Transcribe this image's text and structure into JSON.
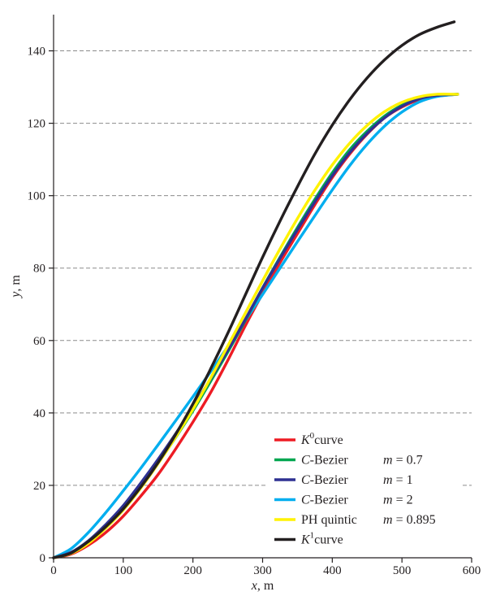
{
  "chart_data": {
    "type": "line",
    "xlabel": {
      "var": "x",
      "unit": ", m"
    },
    "ylabel": {
      "var": "y",
      "unit": ", m"
    },
    "xlim": [
      0,
      600
    ],
    "ylim": [
      0,
      150
    ],
    "xticks": [
      "0",
      "100",
      "200",
      "300",
      "400",
      "500",
      "600"
    ],
    "yticks": [
      "0",
      "20",
      "40",
      "60",
      "80",
      "100",
      "120",
      "140"
    ],
    "grid": "horizontal dashed",
    "legend_position": "bottom-right",
    "series": [
      {
        "name": "K0 curve",
        "legend": {
          "italic": "K",
          "sup": "0",
          "rest": "curve",
          "param": ""
        },
        "color": "#ed1c24",
        "x": [
          0,
          25,
          50,
          75,
          100,
          125,
          150,
          175,
          200,
          225,
          250,
          275,
          300,
          325,
          350,
          375,
          400,
          425,
          450,
          475,
          500,
          525,
          550,
          580
        ],
        "y": [
          0,
          1,
          3.5,
          7,
          11.5,
          17,
          23,
          30,
          37.5,
          45.5,
          54.5,
          64,
          73,
          81.5,
          89.5,
          97.5,
          105,
          111.5,
          117,
          121.5,
          124.5,
          126.5,
          127.5,
          128
        ]
      },
      {
        "name": "C-Bezier m = 0.7",
        "legend": {
          "italic": "C",
          "sup": "",
          "rest": "-Bezier",
          "param": "m = 0.7"
        },
        "color": "#00a650",
        "x": [
          0,
          25,
          50,
          75,
          100,
          125,
          150,
          175,
          200,
          225,
          250,
          275,
          300,
          325,
          350,
          375,
          400,
          425,
          450,
          475,
          500,
          525,
          550,
          580
        ],
        "y": [
          0,
          1.3,
          4.3,
          8.6,
          13.6,
          19.6,
          26.2,
          33.2,
          40.6,
          48.6,
          56.8,
          65.5,
          74.5,
          83,
          91.2,
          99,
          106.3,
          112.7,
          117.8,
          122,
          125,
          127,
          127.8,
          128
        ]
      },
      {
        "name": "C-Bezier m = 1",
        "legend": {
          "italic": "C",
          "sup": "",
          "rest": "-Bezier",
          "param": "m = 1"
        },
        "color": "#2e3192",
        "x": [
          0,
          25,
          50,
          75,
          100,
          125,
          150,
          175,
          200,
          225,
          250,
          275,
          300,
          325,
          350,
          375,
          400,
          425,
          450,
          475,
          500,
          525,
          550,
          580
        ],
        "y": [
          0,
          1.5,
          4.7,
          9.2,
          14.4,
          20.6,
          27.2,
          34.2,
          41.5,
          49.3,
          57.3,
          65.8,
          74.5,
          82.7,
          90.6,
          98.3,
          105.5,
          111.9,
          117.2,
          121.5,
          124.7,
          126.8,
          127.7,
          128
        ]
      },
      {
        "name": "C-Bezier m = 2",
        "legend": {
          "italic": "C",
          "sup": "",
          "rest": "-Bezier",
          "param": "m = 2"
        },
        "color": "#00aeef",
        "x": [
          0,
          25,
          50,
          75,
          100,
          125,
          150,
          175,
          200,
          225,
          250,
          275,
          300,
          325,
          350,
          375,
          400,
          425,
          450,
          475,
          500,
          525,
          550,
          580
        ],
        "y": [
          0,
          2.5,
          7,
          12.5,
          18.5,
          24.7,
          31.2,
          37.8,
          44.5,
          51.3,
          58.3,
          65.5,
          72.7,
          80,
          87.3,
          94.5,
          101.6,
          108.3,
          114.2,
          119.2,
          123.1,
          125.9,
          127.4,
          128
        ]
      },
      {
        "name": "PH quintic m = 0.895",
        "legend": {
          "italic": "",
          "sup": "",
          "rest": "PH quintic",
          "param": "m = 0.895"
        },
        "color": "#fff200",
        "x": [
          0,
          25,
          50,
          75,
          100,
          125,
          150,
          175,
          200,
          225,
          250,
          275,
          300,
          325,
          350,
          375,
          400,
          425,
          450,
          475,
          500,
          525,
          550,
          580
        ],
        "y": [
          0,
          1.2,
          4,
          8.2,
          13.2,
          19.2,
          26,
          33.3,
          41,
          49.5,
          58.5,
          67.5,
          76.5,
          85.3,
          93.7,
          101.5,
          108.5,
          114.5,
          119.4,
          123.2,
          125.8,
          127.3,
          128,
          128
        ]
      },
      {
        "name": "K1 curve",
        "legend": {
          "italic": "K",
          "sup": "1",
          "rest": "curve",
          "param": ""
        },
        "color": "#231f20",
        "x": [
          0,
          25,
          50,
          75,
          100,
          125,
          150,
          175,
          200,
          225,
          250,
          275,
          300,
          325,
          350,
          375,
          400,
          425,
          450,
          475,
          500,
          525,
          550,
          575
        ],
        "y": [
          0,
          1.3,
          4.5,
          8.6,
          13.5,
          19.5,
          26.3,
          34,
          42.5,
          52,
          62,
          72.5,
          83,
          93,
          102.5,
          111.5,
          119.5,
          126.5,
          132.5,
          137.5,
          141.5,
          144.5,
          146.5,
          148
        ]
      }
    ]
  }
}
